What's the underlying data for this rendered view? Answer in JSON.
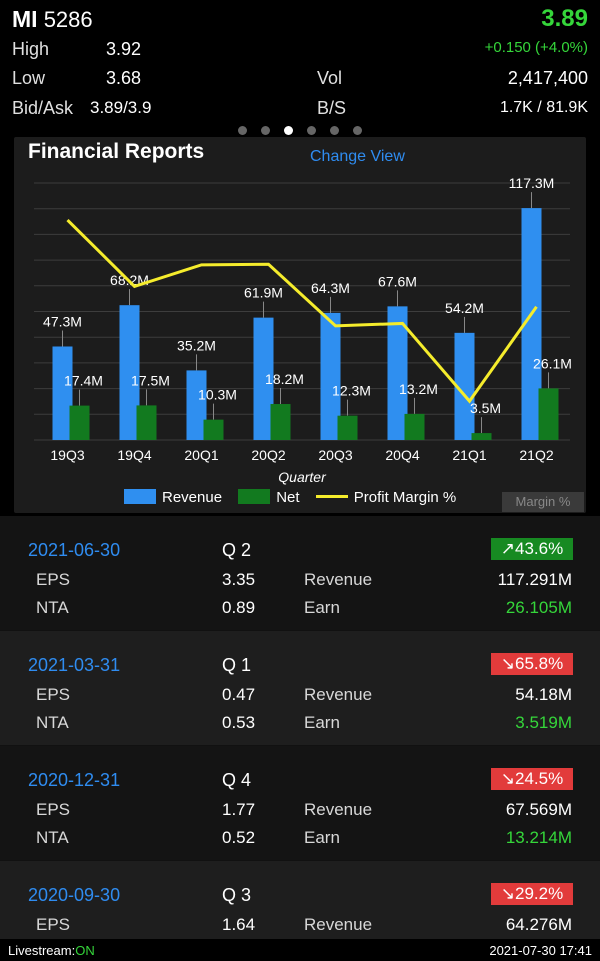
{
  "quote": {
    "symbol": "MI",
    "code": "5286",
    "price": "3.89",
    "high_label": "High",
    "high": "3.92",
    "low_label": "Low",
    "low": "3.68",
    "bidask_label": "Bid/Ask",
    "bidask": "3.89/3.9",
    "change": "+0.150 (+4.0%)",
    "vol_label": "Vol",
    "vol": "2,417,400",
    "bs_label": "B/S",
    "bs": "1.7K / 81.9K"
  },
  "pager": {
    "count": 6,
    "active_index": 2
  },
  "chart_header": {
    "title": "Financial Reports",
    "change_view": "Change View"
  },
  "chart_data": {
    "type": "bar",
    "categories": [
      "19Q3",
      "19Q4",
      "20Q1",
      "20Q2",
      "20Q3",
      "20Q4",
      "21Q1",
      "21Q2"
    ],
    "xlabel": "Quarter",
    "series": [
      {
        "name": "Revenue",
        "values": [
          47.3,
          68.2,
          35.2,
          61.9,
          64.3,
          67.6,
          54.2,
          117.3
        ],
        "labels": [
          "47.3M",
          "68.2M",
          "35.2M",
          "61.9M",
          "64.3M",
          "67.6M",
          "54.2M",
          "117.3M"
        ],
        "color": "#2f8ff0"
      },
      {
        "name": "Net",
        "values": [
          17.4,
          17.5,
          10.3,
          18.2,
          12.3,
          13.2,
          3.5,
          26.1
        ],
        "labels": [
          "17.4M",
          "17.5M",
          "10.3M",
          "18.2M",
          "12.3M",
          "13.2M",
          "3.5M",
          "26.1M"
        ],
        "color": "#127a1f"
      },
      {
        "name": "Profit Margin %",
        "type": "line",
        "values": [
          36.8,
          25.7,
          29.3,
          29.4,
          19.1,
          19.5,
          6.5,
          22.3
        ],
        "color": "#f5ec2c"
      }
    ],
    "ylim": [
      0,
      130
    ],
    "margin_ylim": [
      0,
      43
    ],
    "grid": true,
    "legend": "bottom",
    "margin_button": "Margin %"
  },
  "reports": [
    {
      "date": "2021-06-30",
      "q_label": "Q",
      "q": "2",
      "change": "↗43.6%",
      "direction": "up",
      "eps_label": "EPS",
      "eps": "3.35",
      "nta_label": "NTA",
      "nta": "0.89",
      "revenue_label": "Revenue",
      "revenue": "117.291M",
      "earn_label": "Earn",
      "earn": "26.105M"
    },
    {
      "date": "2021-03-31",
      "q_label": "Q",
      "q": "1",
      "change": "↘65.8%",
      "direction": "down",
      "eps_label": "EPS",
      "eps": "0.47",
      "nta_label": "NTA",
      "nta": "0.53",
      "revenue_label": "Revenue",
      "revenue": "54.18M",
      "earn_label": "Earn",
      "earn": "3.519M"
    },
    {
      "date": "2020-12-31",
      "q_label": "Q",
      "q": "4",
      "change": "↘24.5%",
      "direction": "down",
      "eps_label": "EPS",
      "eps": "1.77",
      "nta_label": "NTA",
      "nta": "0.52",
      "revenue_label": "Revenue",
      "revenue": "67.569M",
      "earn_label": "Earn",
      "earn": "13.214M"
    },
    {
      "date": "2020-09-30",
      "q_label": "Q",
      "q": "3",
      "change": "↘29.2%",
      "direction": "down",
      "eps_label": "EPS",
      "eps": "1.64",
      "nta_label": "",
      "nta": "",
      "revenue_label": "Revenue",
      "revenue": "64.276M",
      "earn_label": "",
      "earn": ""
    }
  ],
  "status": {
    "livestream_label": "Livestream:",
    "livestream_state": "ON",
    "timestamp": "2021-07-30 17:41"
  },
  "colors": {
    "accent_blue": "#2f8cf0",
    "up_green": "#35d63a",
    "down_red": "#e23b3b",
    "margin_yellow": "#f5ec2c"
  }
}
